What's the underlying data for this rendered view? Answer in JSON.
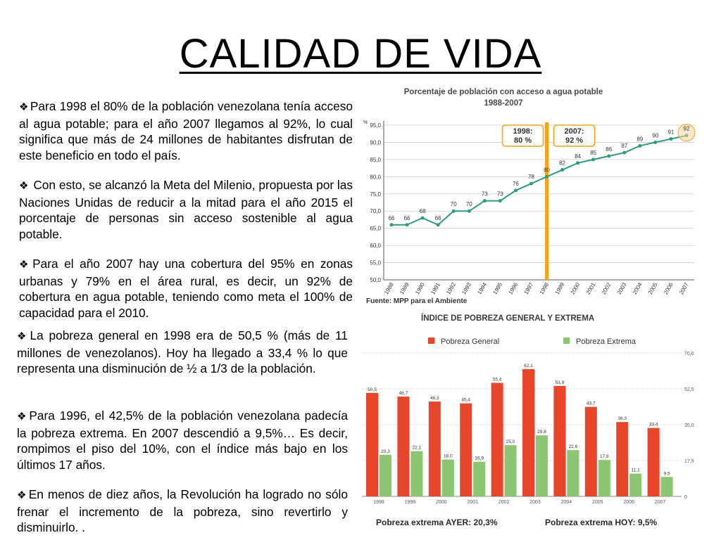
{
  "slide": {
    "title": "CALIDAD DE VIDA",
    "paragraphs": [
      "Para 1998 el 80% de la población venezolana tenía acceso al agua potable; para el año 2007 llegamos al 92%, lo cual significa que más de 24 millones de habitantes disfrutan de este beneficio en todo el país.",
      "Con esto, se alcanzó la Meta del Milenio, propuesta por las Naciones Unidas de reducir a la mitad para el año 2015 el porcentaje de personas sin acceso sostenible al agua potable.",
      "Para el año 2007 hay una cobertura del 95% en zonas urbanas y 79% en el área rural, es decir, un 92% de cobertura en agua potable, teniendo como meta el 100% de capacidad para el 2010.",
      "La pobreza general en 1998 era de 50,5 % (más de 11 millones de venezolanos). Hoy ha llegado a 33,4 % lo que representa una disminución de ½  a 1/3 de la población.",
      "Para 1996, el 42,5% de la población venezolana padecía la pobreza extrema. En 2007 descendió a 9,5%… Es decir, rompimos el piso del 10%, con el índice más bajo en los últimos 17 años.",
      "En menos de diez años, la Revolución ha logrado no sólo frenar el incremento de la pobreza, sino revertirlo y disminuirlo. ."
    ],
    "bullet_icon": "diamond-dots-icon"
  },
  "chart_data": [
    {
      "type": "line",
      "title": "Porcentaje de población con acceso a agua potable",
      "subtitle": "1988-2007",
      "ylabel": "%",
      "ylim": [
        50,
        95
      ],
      "yticks": [
        "95,0",
        "90,0",
        "85,0",
        "80,0",
        "75,0",
        "70,0",
        "65,0",
        "60,0",
        "55,0",
        "50,0"
      ],
      "x": [
        "1988",
        "1989",
        "1990",
        "1991",
        "1992",
        "1993",
        "1994",
        "1995",
        "1996",
        "1997",
        "1998",
        "1999",
        "2000",
        "2001",
        "2002",
        "2003",
        "2004",
        "2005",
        "2006",
        "2007"
      ],
      "values": [
        66,
        66,
        68,
        66,
        70,
        70,
        73,
        73,
        76,
        78,
        80,
        82,
        84,
        85,
        86,
        87,
        89,
        90,
        91,
        92
      ],
      "callouts": [
        {
          "line1": "1998:",
          "line2": "80 %"
        },
        {
          "line1": "2007:",
          "line2": "92 %"
        }
      ],
      "marker_year": "1998",
      "source": "Fuente: MPP para el Ambiente",
      "colors": {
        "line": "#2e9a84",
        "marker": "#f2a41d",
        "callout_border": "#f2a41d",
        "title": "#4a4a4a"
      }
    },
    {
      "type": "bar",
      "title": "ÍNDICE DE POBREZA GENERAL Y EXTREMA",
      "categories": [
        "1998",
        "1999",
        "2000",
        "2001",
        "2002",
        "2003",
        "2004",
        "2005",
        "2006",
        "2007"
      ],
      "ylim": [
        0,
        70
      ],
      "yticks": [
        "70,0",
        "52,5",
        "35,0",
        "17,5",
        "0"
      ],
      "series": [
        {
          "name": "Pobreza General",
          "values": [
            50.5,
            48.7,
            46.3,
            45.4,
            55.4,
            62.1,
            53.9,
            43.7,
            36.3,
            33.4
          ],
          "labels": [
            "50,5",
            "48,7",
            "46,3",
            "45,4",
            "55,4",
            "62,1",
            "53,9",
            "43,7",
            "36,3",
            "33,4"
          ],
          "color": "#e8462a"
        },
        {
          "name": "Pobreza Extrema",
          "values": [
            20.3,
            22.1,
            18.0,
            16.9,
            25.0,
            29.8,
            22.6,
            17.8,
            11.1,
            9.5
          ],
          "labels": [
            "20,3",
            "22,1",
            "18,0",
            "16,9",
            "25,0",
            "29,8",
            "22,6",
            "17,8",
            "11,1",
            "9,5"
          ],
          "color": "#8cc672"
        }
      ],
      "footer_left": "Pobreza extrema AYER: 20,3%",
      "footer_right": "Pobreza extrema HOY: 9,5%",
      "colors": {
        "title": "#3a3a3a",
        "footer": "#2a2a2a"
      }
    }
  ]
}
